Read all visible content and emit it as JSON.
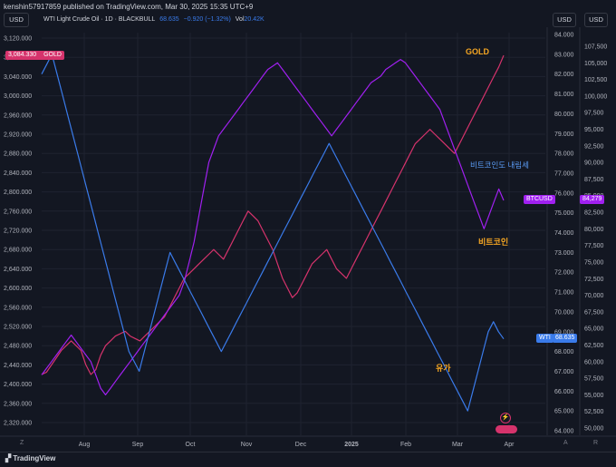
{
  "header": {
    "published": "kenshin57917859 published on TradingView.com, Mar 30, 2025 15:35 UTC+9",
    "usd_left": "USD",
    "usd_right": "USD",
    "usd_far_right": "USD"
  },
  "legend": {
    "symbol": "WTI Light Crude Oil · 1D · BLACKBULL",
    "price": "68.635",
    "change": "−0.920 (−1.32%)",
    "vol_label": "Vol",
    "vol_value": "20.42K"
  },
  "footer": {
    "brand": "TradingView",
    "z_label": "Z",
    "a_label": "A",
    "r_label": "R"
  },
  "price_tags": {
    "gold_value": "3,084.330",
    "gold_name": "GOLD",
    "btc_name": "BTCUSD",
    "btc_value": "84,279",
    "wti_name": "WTI",
    "wti_value": "68.635"
  },
  "annotations": {
    "gold": "GOLD",
    "btc_falling": "비트코인도 내림세",
    "btc": "비트코인",
    "oil": "유가"
  },
  "colors": {
    "gold": "#d6336c",
    "btc": "#a020f0",
    "wti": "#3a7bea",
    "annot_orange": "#f5a623",
    "annot_blue": "#5b9cf5"
  },
  "chart_data": {
    "type": "line",
    "x_ticks": [
      "Aug",
      "Sep",
      "Oct",
      "Nov",
      "Dec",
      "2025",
      "Feb",
      "Mar",
      "Apr"
    ],
    "left_axis": {
      "unit": "USD",
      "ticks": [
        "3,120.000",
        "3,080.000",
        "3,040.000",
        "3,000.000",
        "2,960.000",
        "2,920.000",
        "2,880.000",
        "2,840.000",
        "2,800.000",
        "2,760.000",
        "2,720.000",
        "2,680.000",
        "2,640.000",
        "2,600.000",
        "2,560.000",
        "2,520.000",
        "2,480.000",
        "2,440.000",
        "2,400.000",
        "2,360.000",
        "2,320.000"
      ],
      "ylim": [
        2310,
        3130
      ]
    },
    "wti_axis": {
      "unit": "USD",
      "ticks": [
        "84.000",
        "83.000",
        "82.000",
        "81.000",
        "80.000",
        "79.000",
        "78.000",
        "77.000",
        "76.000",
        "75.000",
        "74.000",
        "73.000",
        "72.000",
        "71.000",
        "70.000",
        "69.000",
        "68.000",
        "67.000",
        "66.000",
        "65.000",
        "64.000"
      ]
    },
    "btc_axis": {
      "unit": "USD",
      "ticks": [
        "107,500",
        "105,000",
        "102,500",
        "100,000",
        "97,500",
        "95,000",
        "92,500",
        "90,000",
        "87,500",
        "85,000",
        "82,500",
        "80,000",
        "77,500",
        "75,000",
        "72,500",
        "70,000",
        "67,500",
        "65,000",
        "62,500",
        "60,000",
        "57,500",
        "55,000",
        "52,500",
        "50,000"
      ]
    },
    "series": [
      {
        "name": "GOLD",
        "axis": "left",
        "values": [
          2420,
          2425,
          2440,
          2455,
          2470,
          2480,
          2490,
          2480,
          2470,
          2440,
          2420,
          2430,
          2460,
          2480,
          2490,
          2500,
          2505,
          2510,
          2500,
          2495,
          2490,
          2500,
          2510,
          2520,
          2530,
          2540,
          2560,
          2580,
          2600,
          2620,
          2630,
          2640,
          2650,
          2660,
          2670,
          2680,
          2670,
          2660,
          2680,
          2700,
          2720,
          2740,
          2760,
          2750,
          2740,
          2720,
          2700,
          2680,
          2650,
          2620,
          2600,
          2580,
          2590,
          2610,
          2630,
          2650,
          2660,
          2670,
          2680,
          2660,
          2640,
          2630,
          2620,
          2640,
          2660,
          2680,
          2700,
          2720,
          2740,
          2760,
          2780,
          2800,
          2820,
          2840,
          2860,
          2880,
          2900,
          2910,
          2920,
          2930,
          2920,
          2910,
          2900,
          2890,
          2880,
          2900,
          2920,
          2940,
          2960,
          2980,
          3000,
          3020,
          3040,
          3060,
          3084
        ]
      },
      {
        "name": "BTCUSD",
        "axis": "btc",
        "values": [
          58000,
          59000,
          60000,
          61000,
          62000,
          63000,
          64000,
          63000,
          62000,
          61000,
          60000,
          58000,
          56000,
          55000,
          56000,
          57000,
          58000,
          59000,
          60000,
          61000,
          62000,
          63000,
          64000,
          65000,
          66000,
          67000,
          68000,
          69000,
          70000,
          72000,
          75000,
          78000,
          82000,
          86000,
          90000,
          92000,
          94000,
          95000,
          96000,
          97000,
          98000,
          99000,
          100000,
          101000,
          102000,
          103000,
          104000,
          104500,
          105000,
          104000,
          103000,
          102000,
          101000,
          100000,
          99000,
          98000,
          97000,
          96000,
          95000,
          94000,
          95000,
          96000,
          97000,
          98000,
          99000,
          100000,
          101000,
          102000,
          102500,
          103000,
          104000,
          104500,
          105000,
          105500,
          105000,
          104000,
          103000,
          102000,
          101000,
          100000,
          99000,
          98000,
          96000,
          94000,
          92000,
          90000,
          88000,
          86000,
          84000,
          82000,
          80000,
          82000,
          84000,
          86000,
          84279
        ]
      },
      {
        "name": "WTI",
        "axis": "wti",
        "values": [
          82.0,
          82.5,
          83.0,
          82.0,
          81.0,
          80.0,
          79.0,
          78.0,
          77.0,
          76.0,
          75.0,
          74.0,
          73.0,
          72.0,
          71.0,
          70.0,
          69.0,
          68.0,
          67.5,
          67.0,
          68.0,
          69.0,
          70.0,
          71.0,
          72.0,
          73.0,
          72.5,
          72.0,
          71.5,
          71.0,
          70.5,
          70.0,
          69.5,
          69.0,
          68.5,
          68.0,
          68.5,
          69.0,
          69.5,
          70.0,
          70.5,
          71.0,
          71.5,
          72.0,
          72.5,
          73.0,
          73.5,
          74.0,
          74.5,
          75.0,
          75.5,
          76.0,
          76.5,
          77.0,
          77.5,
          78.0,
          78.5,
          78.0,
          77.5,
          77.0,
          76.5,
          76.0,
          75.5,
          75.0,
          74.5,
          74.0,
          73.5,
          73.0,
          72.5,
          72.0,
          71.5,
          71.0,
          70.5,
          70.0,
          69.5,
          69.0,
          68.5,
          68.0,
          67.5,
          67.0,
          66.5,
          66.0,
          65.5,
          65.0,
          66.0,
          67.0,
          68.0,
          69.0,
          69.5,
          69.0,
          68.635
        ]
      }
    ],
    "grid": true
  }
}
